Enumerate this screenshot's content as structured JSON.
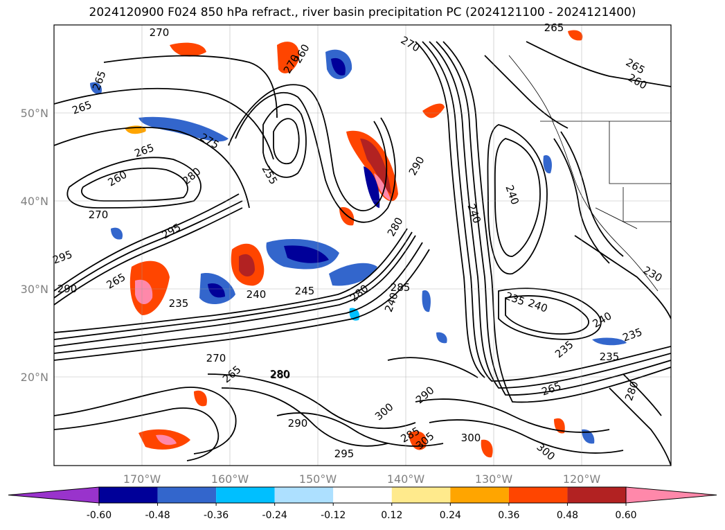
{
  "title": "2024120900 F024 850 hPa refract., river basin precipitation PC (2024121100 - 2024121400)",
  "y_axis_labels": [
    "50°N",
    "40°N",
    "30°N",
    "20°N"
  ],
  "x_axis_labels": [
    "170°W",
    "160°W",
    "150°W",
    "140°W",
    "130°W",
    "120°W"
  ],
  "colorbar": {
    "colors": [
      "#9933cc",
      "#000099",
      "#3366cc",
      "#00bfff",
      "#ade0ff",
      "#ffffff",
      "#ffea8c",
      "#ffa500",
      "#ff4500",
      "#b22222",
      "#ff88aa",
      "#ff88aa"
    ],
    "ticks": [
      "-0.60",
      "-0.48",
      "-0.36",
      "-0.24",
      "-0.12",
      "0.12",
      "0.24",
      "0.36",
      "0.48",
      "0.60"
    ]
  },
  "contour_labels": [
    "270",
    "265",
    "265",
    "270",
    "270",
    "265",
    "265",
    "260",
    "275",
    "265",
    "260",
    "280",
    "270",
    "295",
    "255",
    "260",
    "295",
    "290",
    "265",
    "235",
    "240",
    "245",
    "285",
    "280",
    "240",
    "235",
    "240",
    "240",
    "235",
    "235",
    "235",
    "265",
    "270",
    "265",
    "280",
    "290",
    "285",
    "295",
    "300",
    "305",
    "300",
    "290",
    "280",
    "300",
    "240",
    "240",
    "280",
    "290",
    "280",
    "230"
  ]
}
